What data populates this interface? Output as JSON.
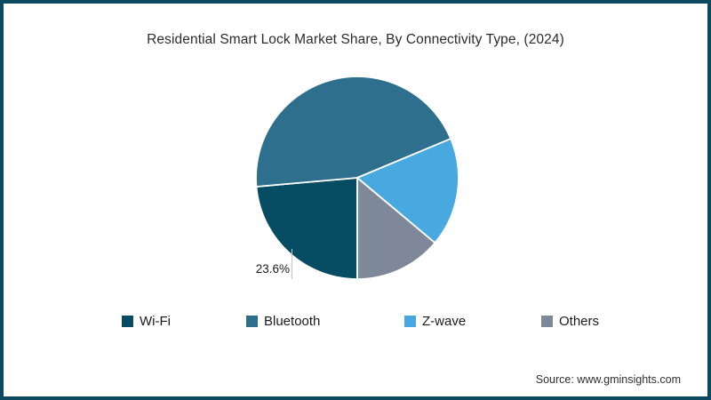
{
  "frame": {
    "background": "#ffffff",
    "border_color": "#0d4a5f"
  },
  "title": "Residential Smart Lock Market Share, By Connectivity Type, (2024)",
  "source_text": "Source: www.gminsights.com",
  "chart_data": {
    "type": "pie",
    "title": "Residential Smart Lock Market Share, By Connectivity Type, (2024)",
    "categories": [
      "Wi-Fi",
      "Bluetooth",
      "Z-wave",
      "Others"
    ],
    "values": [
      23.6,
      45.1,
      17.4,
      13.9
    ],
    "colors": [
      "#064c62",
      "#2e6f8e",
      "#48a9e0",
      "#7e8898"
    ],
    "slice_border_color": "#ffffff",
    "start_angle_deg": 90,
    "direction": "clockwise",
    "legend_position": "bottom",
    "data_labels": [
      {
        "category": "Wi-Fi",
        "text": "23.6%"
      }
    ]
  },
  "legend": {
    "items": [
      {
        "label": "Wi-Fi",
        "color": "#064c62"
      },
      {
        "label": "Bluetooth",
        "color": "#2e6f8e"
      },
      {
        "label": "Z-wave",
        "color": "#48a9e0"
      },
      {
        "label": "Others",
        "color": "#7e8898"
      }
    ]
  }
}
